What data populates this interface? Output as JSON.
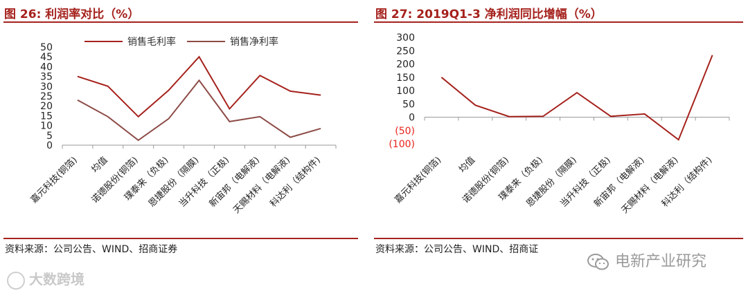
{
  "chart_data": [
    {
      "type": "line",
      "title": "图 26:  利润率对比（%）",
      "categories": [
        "嘉元科技(铜箔)",
        "均值",
        "诺德股份(铜箔)",
        "璞泰来（负极)",
        "恩捷股份（隔膜)",
        "当升科技（正极)",
        "新宙邦（电解液)",
        "天赐材料（电解液)",
        "科达利（结构件)"
      ],
      "series": [
        {
          "name": "销售毛利率",
          "values": [
            35,
            30,
            14.5,
            28,
            45,
            18.5,
            35.5,
            27.5,
            25.5
          ],
          "color": "#a5211c"
        },
        {
          "name": "销售净利率",
          "values": [
            23,
            14.5,
            2.5,
            13.5,
            33,
            12,
            14.5,
            4,
            8.5
          ],
          "color": "#8c4a45"
        }
      ],
      "ylim": [
        0,
        50
      ],
      "yticks": [
        "0",
        "5",
        "10",
        "15",
        "20",
        "25",
        "30",
        "35",
        "40",
        "45",
        "50"
      ],
      "legend": "top",
      "grid": false,
      "source": "资料来源：公司公告、WIND、招商证券"
    },
    {
      "type": "line",
      "title": "图 27:  2019Q1-3 净利润同比增幅（%）",
      "categories": [
        "嘉元科技(铜箔)",
        "均值",
        "诺德股份(铜箔)",
        "璞泰来（负极)",
        "恩捷股份（隔膜)",
        "当升科技（正极)",
        "新宙邦（电解液)",
        "天赐材料（电解液)",
        "科达利（结构件)"
      ],
      "series": [
        {
          "values": [
            150,
            45,
            2,
            3,
            92,
            3,
            12,
            -85,
            233
          ],
          "color": "#a5211c"
        }
      ],
      "ylim": [
        -100,
        300
      ],
      "yticks": [
        "(100)",
        "(50)",
        "0",
        "50",
        "100",
        "150",
        "200",
        "250",
        "300"
      ],
      "negative_tick_color": "#e8231c",
      "grid": false,
      "source": "资料来源：公司公告、WIND、招商证"
    }
  ],
  "watermarks": {
    "left": "大数跨境",
    "right": "电新产业研究"
  }
}
